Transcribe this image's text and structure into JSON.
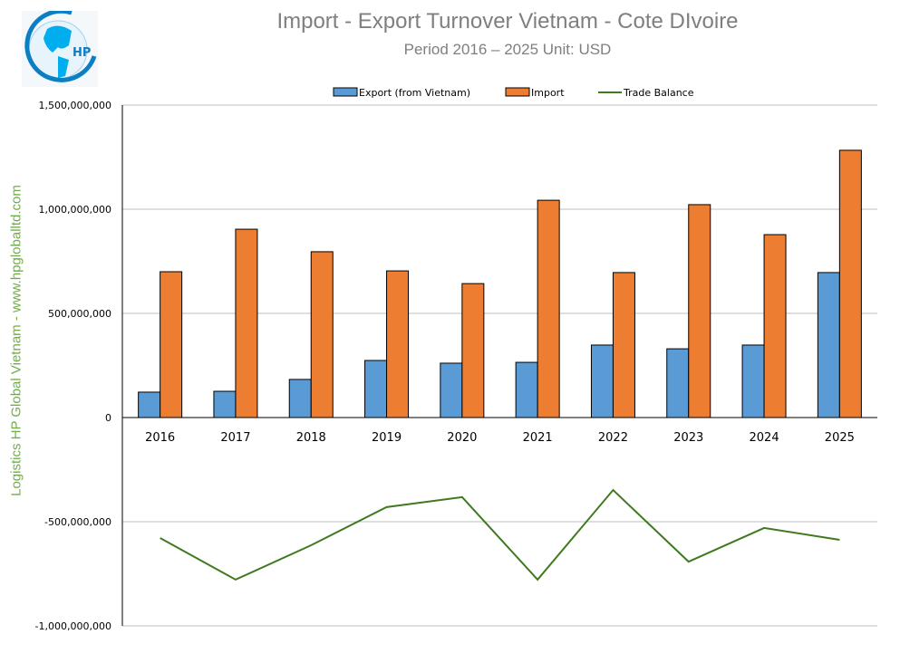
{
  "header": {
    "title": "Import - Export Turnover Vietnam - Cote DIvoire",
    "subtitle": "Period 2016 – 2025  Unit: USD",
    "side_label": "Logistics HP Global Vietnam - www.hpgloballtd.com",
    "logo_text": "HP"
  },
  "chart_data": {
    "type": "bar",
    "title": "Import - Export Turnover Vietnam - Cote DIvoire",
    "subtitle": "Period 2016 – 2025  Unit: USD",
    "categories": [
      "2016",
      "2017",
      "2018",
      "2019",
      "2020",
      "2021",
      "2022",
      "2023",
      "2024",
      "2025"
    ],
    "series": [
      {
        "name": "Export (from Vietnam)",
        "type": "bar",
        "color": "#5b9bd5",
        "values": [
          122000000,
          126000000,
          183000000,
          274000000,
          261000000,
          265000000,
          348000000,
          330000000,
          348000000,
          696000000
        ]
      },
      {
        "name": "Import",
        "type": "bar",
        "color": "#ed7d31",
        "values": [
          700000000,
          904000000,
          796000000,
          704000000,
          643000000,
          1043000000,
          696000000,
          1022000000,
          878000000,
          1283000000
        ]
      },
      {
        "name": "Trade Balance",
        "type": "line",
        "color": "#3f7a1f",
        "values": [
          -578000000,
          -778000000,
          -613000000,
          -430000000,
          -382000000,
          -778000000,
          -348000000,
          -692000000,
          -530000000,
          -587000000
        ]
      }
    ],
    "ylim": [
      -1000000000,
      1500000000
    ],
    "yticks": [
      -1000000000,
      -500000000,
      0,
      500000000,
      1000000000,
      1500000000
    ],
    "ytick_labels": [
      "-1,000,000,000",
      "-500,000,000",
      "0",
      "500,000,000",
      "1,000,000,000",
      "1,500,000,000"
    ],
    "grid": true,
    "legend": "top"
  }
}
